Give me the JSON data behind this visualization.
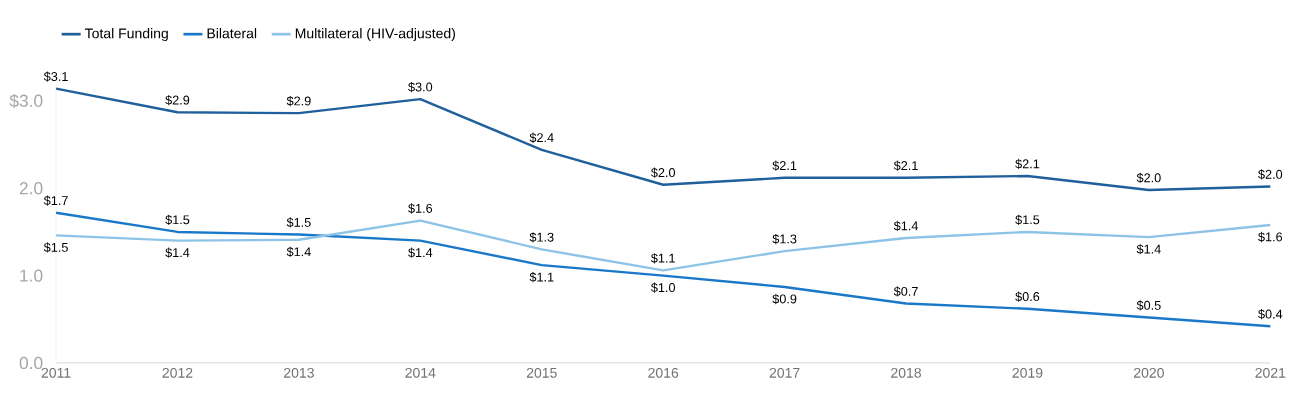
{
  "chart_data": {
    "type": "line",
    "x": [
      2011,
      2012,
      2013,
      2014,
      2015,
      2016,
      2017,
      2018,
      2019,
      2020,
      2021
    ],
    "series": [
      {
        "name": "Total Funding",
        "color": "#1f5f9c",
        "values": [
          3.14,
          2.87,
          2.86,
          3.02,
          2.44,
          2.04,
          2.12,
          2.12,
          2.14,
          1.98,
          2.02
        ],
        "value_labels": [
          "$3.1",
          "$2.9",
          "$2.9",
          "$3.0",
          "$2.4",
          "$2.0",
          "$2.1",
          "$2.1",
          "$2.1",
          "$2.0",
          "$2.0"
        ]
      },
      {
        "name": "Bilateral",
        "color": "#1a78c9",
        "values": [
          1.72,
          1.5,
          1.47,
          1.4,
          1.12,
          1.0,
          0.87,
          0.68,
          0.62,
          0.52,
          0.42
        ],
        "value_labels": [
          "$1.7",
          "$1.5",
          "$1.5",
          "$1.4",
          "$1.1",
          "$1.0",
          "$0.9",
          "$0.7",
          "$0.6",
          "$0.5",
          "$0.4"
        ]
      },
      {
        "name": "Multilateral (HIV-adjusted)",
        "color": "#8ec3e8",
        "values": [
          1.46,
          1.4,
          1.41,
          1.63,
          1.3,
          1.06,
          1.28,
          1.43,
          1.5,
          1.44,
          1.58
        ],
        "value_labels": [
          "$1.5",
          "$1.4",
          "$1.4",
          "$1.6",
          "$1.3",
          "$1.1",
          "$1.3",
          "$1.4",
          "$1.5",
          "$1.4",
          "$1.6"
        ]
      }
    ],
    "xlim": [
      2011,
      2021
    ],
    "xticks": [
      2011,
      2012,
      2013,
      2014,
      2015,
      2016,
      2017,
      2018,
      2019,
      2020,
      2021
    ],
    "yticks": [
      {
        "value": 0,
        "label": "0.0"
      },
      {
        "value": 1,
        "label": "1.0"
      },
      {
        "value": 2,
        "label": "2.0"
      },
      {
        "value": 3,
        "label": "$3.0"
      }
    ],
    "ylim": [
      0,
      3.3
    ],
    "legend": "top left",
    "marker": "none",
    "line_style": "solid",
    "grid": false
  }
}
